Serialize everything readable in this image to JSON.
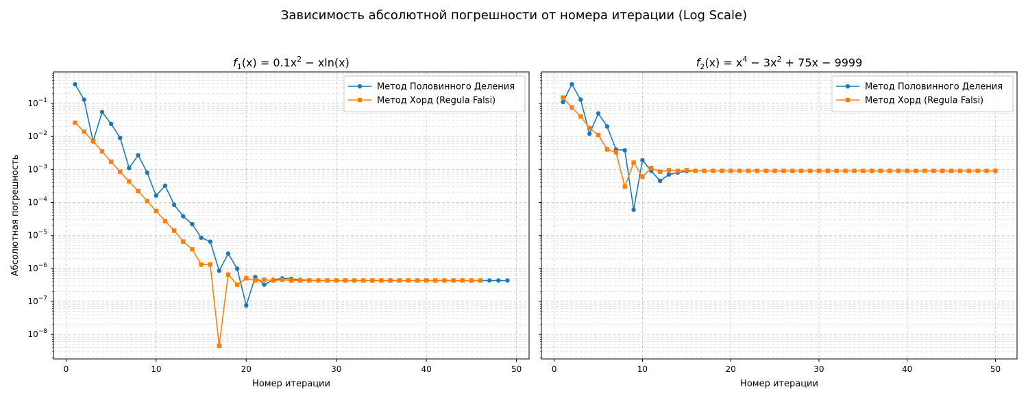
{
  "figure": {
    "suptitle": "Зависимость абсолютной погрешности от номера итерации (Log Scale)"
  },
  "colors": {
    "bisection": "#1f77b4",
    "chord": "#ff7f0e",
    "grid": "#b0b0b0",
    "axes": "#000000"
  },
  "chart_data": [
    {
      "type": "line",
      "title": {
        "f": "f",
        "sub": "1",
        "expr": "(x) = 0.1x",
        "sup": "2",
        "tail": " − xln(x)"
      },
      "xlabel": "Номер итерации",
      "ylabel": "Абсолютная погрешность",
      "yscale": "log",
      "xlim": [
        -1.4,
        51.4
      ],
      "ylim": [
        1.8e-09,
        0.9
      ],
      "xticks": [
        0,
        10,
        20,
        30,
        40,
        50
      ],
      "xtick_labels": [
        "0",
        "10",
        "20",
        "30",
        "40",
        "50"
      ],
      "yticks": [
        1e-08,
        1e-07,
        1e-06,
        1e-05,
        0.0001,
        0.001,
        0.01,
        0.1
      ],
      "ytick_labels": [
        {
          "base": "10",
          "exp": "−8"
        },
        {
          "base": "10",
          "exp": "−7"
        },
        {
          "base": "10",
          "exp": "−6"
        },
        {
          "base": "10",
          "exp": "−5"
        },
        {
          "base": "10",
          "exp": "−4"
        },
        {
          "base": "10",
          "exp": "−3"
        },
        {
          "base": "10",
          "exp": "−2"
        },
        {
          "base": "10",
          "exp": "−1"
        }
      ],
      "grid": true,
      "legend": "top-right",
      "series": [
        {
          "name": "Метод Половинного Деления",
          "color": "#1f77b4",
          "marker": "circle",
          "x": [
            1,
            2,
            3,
            4,
            5,
            6,
            7,
            8,
            9,
            10,
            11,
            12,
            13,
            14,
            15,
            16,
            17,
            18,
            19,
            20,
            21,
            22,
            23,
            24,
            25,
            26,
            27,
            28,
            29,
            30,
            31,
            32,
            33,
            34,
            35,
            36,
            37,
            38,
            39,
            40,
            41,
            42,
            43,
            44,
            45,
            46,
            47,
            48,
            49
          ],
          "y": [
            0.38,
            0.13,
            0.007,
            0.055,
            0.024,
            0.009,
            0.0011,
            0.0027,
            0.0008,
            0.00016,
            0.00032,
            8.5e-05,
            3.8e-05,
            2.2e-05,
            8.5e-06,
            6.5e-06,
            8.5e-07,
            2.8e-06,
            9.8e-07,
            7.5e-08,
            5.5e-07,
            3.2e-07,
            4.5e-07,
            5e-07,
            4.8e-07,
            4.5e-07,
            4.4e-07,
            4.3e-07,
            4.3e-07,
            4.3e-07,
            4.3e-07,
            4.3e-07,
            4.3e-07,
            4.3e-07,
            4.3e-07,
            4.3e-07,
            4.3e-07,
            4.3e-07,
            4.3e-07,
            4.3e-07,
            4.3e-07,
            4.3e-07,
            4.3e-07,
            4.3e-07,
            4.3e-07,
            4.3e-07,
            4.3e-07,
            4.3e-07,
            4.3e-07
          ]
        },
        {
          "name": "Метод Хорд (Regula Falsi)",
          "color": "#ff7f0e",
          "marker": "square",
          "x": [
            1,
            2,
            3,
            4,
            5,
            6,
            7,
            8,
            9,
            10,
            11,
            12,
            13,
            14,
            15,
            16,
            17,
            18,
            19,
            20,
            21,
            22,
            23,
            24,
            25,
            26,
            27,
            28,
            29,
            30,
            31,
            32,
            33,
            34,
            35,
            36,
            37,
            38,
            39,
            40,
            41,
            42,
            43,
            44,
            45,
            46
          ],
          "y": [
            0.026,
            0.014,
            0.0072,
            0.0035,
            0.0017,
            0.00085,
            0.00043,
            0.00022,
            0.00011,
            5.5e-05,
            2.7e-05,
            1.4e-05,
            6.5e-06,
            3.8e-06,
            1.3e-06,
            1.3e-06,
            4.5e-09,
            6.5e-07,
            3.2e-07,
            5e-07,
            4.3e-07,
            4.5e-07,
            4.3e-07,
            4.5e-07,
            4.3e-07,
            4.3e-07,
            4.3e-07,
            4.3e-07,
            4.3e-07,
            4.3e-07,
            4.3e-07,
            4.3e-07,
            4.3e-07,
            4.3e-07,
            4.3e-07,
            4.3e-07,
            4.3e-07,
            4.3e-07,
            4.3e-07,
            4.3e-07,
            4.3e-07,
            4.3e-07,
            4.3e-07,
            4.3e-07,
            4.3e-07,
            4.3e-07
          ]
        }
      ]
    },
    {
      "type": "line",
      "title": {
        "f": "f",
        "sub": "2",
        "expr": "(x) = x",
        "sup": "4",
        "mid": " − 3x",
        "sup2": "2",
        "tail": " + 75x − 9999"
      },
      "xlabel": "Номер итерации",
      "ylabel": "",
      "yscale": "log",
      "xlim": [
        -1.45,
        52.45
      ],
      "ylim": [
        1.8e-09,
        0.9
      ],
      "xticks": [
        0,
        10,
        20,
        30,
        40,
        50
      ],
      "xtick_labels": [
        "0",
        "10",
        "20",
        "30",
        "40",
        "50"
      ],
      "grid": true,
      "legend": "top-right",
      "series": [
        {
          "name": "Метод Половинного Деления",
          "color": "#1f77b4",
          "marker": "circle",
          "x": [
            1,
            2,
            3,
            4,
            5,
            6,
            7,
            8,
            9,
            10,
            11,
            12,
            13,
            14,
            15,
            16,
            17,
            18,
            19,
            20,
            21,
            22,
            23,
            24,
            25,
            26,
            27,
            28,
            29,
            30,
            31,
            32,
            33,
            34,
            35,
            36,
            37,
            38,
            39,
            40,
            41,
            42,
            43,
            44,
            45,
            46,
            47,
            48,
            49,
            50
          ],
          "y": [
            0.11,
            0.38,
            0.13,
            0.012,
            0.05,
            0.02,
            0.004,
            0.0038,
            6e-05,
            0.0019,
            0.0009,
            0.00045,
            0.0007,
            0.0008,
            0.00088,
            0.0009,
            0.0009,
            0.0009,
            0.0009,
            0.0009,
            0.0009,
            0.0009,
            0.0009,
            0.0009,
            0.0009,
            0.0009,
            0.0009,
            0.0009,
            0.0009,
            0.0009,
            0.0009,
            0.0009,
            0.0009,
            0.0009,
            0.0009,
            0.0009,
            0.0009,
            0.0009,
            0.0009,
            0.0009,
            0.0009,
            0.0009,
            0.0009,
            0.0009,
            0.0009,
            0.0009,
            0.0009,
            0.0009,
            0.0009,
            0.0009
          ]
        },
        {
          "name": "Метод Хорд (Regula Falsi)",
          "color": "#ff7f0e",
          "marker": "square",
          "x": [
            1,
            2,
            3,
            4,
            5,
            6,
            7,
            8,
            9,
            10,
            11,
            12,
            13,
            14,
            15,
            16,
            17,
            18,
            19,
            20,
            21,
            22,
            23,
            24,
            25,
            26,
            27,
            28,
            29,
            30,
            31,
            32,
            33,
            34,
            35,
            36,
            37,
            38,
            39,
            40,
            41,
            42,
            43,
            44,
            45,
            46,
            47,
            48,
            49,
            50
          ],
          "y": [
            0.15,
            0.075,
            0.04,
            0.018,
            0.011,
            0.004,
            0.0033,
            0.0003,
            0.0016,
            0.0006,
            0.0011,
            0.00085,
            0.00095,
            0.0009,
            0.00095,
            0.0009,
            0.0009,
            0.0009,
            0.0009,
            0.0009,
            0.0009,
            0.0009,
            0.0009,
            0.0009,
            0.0009,
            0.0009,
            0.0009,
            0.0009,
            0.0009,
            0.0009,
            0.0009,
            0.0009,
            0.0009,
            0.0009,
            0.0009,
            0.0009,
            0.0009,
            0.0009,
            0.0009,
            0.0009,
            0.0009,
            0.0009,
            0.0009,
            0.0009,
            0.0009,
            0.0009,
            0.0009,
            0.0009,
            0.0009,
            0.0009
          ]
        }
      ]
    }
  ]
}
